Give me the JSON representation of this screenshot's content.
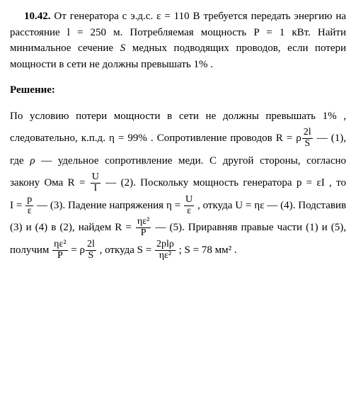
{
  "problem": {
    "number": "10.42.",
    "line1a": "От генератора с э.д.с. ",
    "eps_eq": "ε = 110 В",
    "line1b": " требуется передать энергию на расстояние ",
    "l_eq": "l = 250 м.",
    "line1c": " Потребляемая мощность ",
    "P_eq": "P = 1 кВт.",
    "line2": " Найти минимальное сечение ",
    "S_sym": "S",
    "line3": " медных подводящих проводов, если потери мощности в сети не должны превышать ",
    "one_pct": "1% ."
  },
  "section_title": "Решение:",
  "sol": {
    "t1": "По условию потери мощности в сети не должны превышать ",
    "v1": "1% ,",
    "t2": " следовательно, к.п.д. ",
    "eta_eq": "η = 99% .",
    "t3": " Сопротивление проводов ",
    "R_lhs": "R = ρ",
    "f1_num": "2l",
    "f1_den": "S",
    "eq1_tag": " — (1), где ",
    "rho_sym": "ρ",
    "t4": " — удельное сопротивление меди. С другой стороны, согласно закону Ома ",
    "R2_lhs": "R = ",
    "f2_num": "U",
    "f2_den": "I",
    "eq2_tag": " — (2). Поскольку мощность генератора ",
    "p_eq": "p = εI ,",
    "t5": " то ",
    "I_lhs": "I = ",
    "f3_num": "p",
    "f3_den": "ε",
    "eq3_tag": " — (3). Падение напряжения ",
    "eta_lhs": "η = ",
    "f4_num": "U",
    "f4_den": "ε",
    "t6": " , откуда ",
    "U_eq": "U = ηε",
    "eq4_tag": " — (4). Подставив (3) и (4) в (2), найдем ",
    "R5_lhs": "R = ",
    "f5_num": "ηε²",
    "f5_den": "P",
    "eq5_tag": " — (5). Приравняв правые части (1) и (5), получим ",
    "f6a_num": "ηε²",
    "f6a_den": "P",
    "eq6_mid": " = ρ",
    "f6b_num": "2l",
    "f6b_den": "S",
    "t7": " , откуда ",
    "S_lhs": "S = ",
    "f7_num": "2plρ",
    "f7_den": "ηε²",
    "t8": " ; ",
    "S_ans": "S = 78 мм² ."
  }
}
